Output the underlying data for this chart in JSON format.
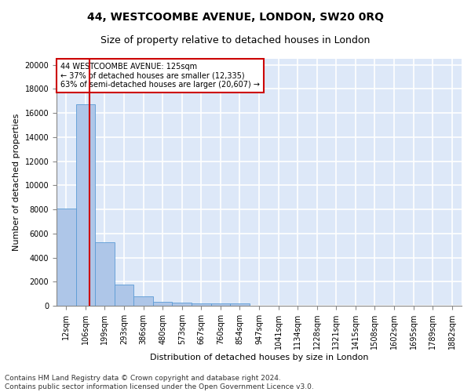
{
  "title": "44, WESTCOOMBE AVENUE, LONDON, SW20 0RQ",
  "subtitle": "Size of property relative to detached houses in London",
  "xlabel": "Distribution of detached houses by size in London",
  "ylabel": "Number of detached properties",
  "categories": [
    "12sqm",
    "106sqm",
    "199sqm",
    "293sqm",
    "386sqm",
    "480sqm",
    "573sqm",
    "667sqm",
    "760sqm",
    "854sqm",
    "947sqm",
    "1041sqm",
    "1134sqm",
    "1228sqm",
    "1321sqm",
    "1415sqm",
    "1508sqm",
    "1602sqm",
    "1695sqm",
    "1789sqm",
    "1882sqm"
  ],
  "bar_values": [
    8100,
    16700,
    5300,
    1750,
    750,
    300,
    250,
    200,
    175,
    175,
    0,
    0,
    0,
    0,
    0,
    0,
    0,
    0,
    0,
    0,
    0
  ],
  "bar_color": "#aec6e8",
  "bar_edge_color": "#5b9bd5",
  "background_color": "#dde8f8",
  "grid_color": "#ffffff",
  "marker_color": "#cc0000",
  "annotation_text": "44 WESTCOOMBE AVENUE: 125sqm\n← 37% of detached houses are smaller (12,335)\n63% of semi-detached houses are larger (20,607) →",
  "annotation_box_color": "#ffffff",
  "annotation_box_edge": "#cc0000",
  "ylim": [
    0,
    20500
  ],
  "yticks": [
    0,
    2000,
    4000,
    6000,
    8000,
    10000,
    12000,
    14000,
    16000,
    18000,
    20000
  ],
  "footer_text": "Contains HM Land Registry data © Crown copyright and database right 2024.\nContains public sector information licensed under the Open Government Licence v3.0.",
  "title_fontsize": 10,
  "subtitle_fontsize": 9,
  "axis_label_fontsize": 8,
  "tick_fontsize": 7,
  "footer_fontsize": 6.5
}
